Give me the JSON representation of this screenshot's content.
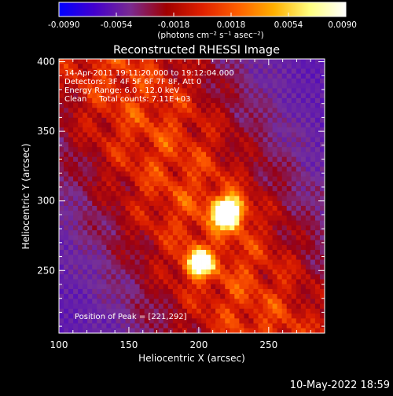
{
  "chart_data": {
    "type": "heatmap",
    "title": "Reconstructed RHESSI Image",
    "xlabel": "Heliocentric X (arcsec)",
    "ylabel": "Heliocentric Y (arcsec)",
    "xlim": [
      100,
      290
    ],
    "ylim": [
      205,
      402
    ],
    "x_ticks": [
      "100",
      "150",
      "200",
      "250"
    ],
    "y_ticks": [
      "250",
      "300",
      "350",
      "400"
    ],
    "x_tick_values": [
      100,
      150,
      200,
      250
    ],
    "y_tick_values": [
      250,
      300,
      350,
      400
    ],
    "colorbar": {
      "ticks": [
        "-0.0090",
        "-0.0054",
        "-0.0018",
        "0.0018",
        "0.0054",
        "0.0090"
      ],
      "tick_values": [
        -0.009,
        -0.0054,
        -0.0018,
        0.0018,
        0.0054,
        0.009
      ],
      "range": [
        -0.009,
        0.009
      ],
      "label": "(photons cm⁻² s⁻¹ asec⁻²)",
      "colors": [
        "#0000ff",
        "#4400cc",
        "#7a2a90",
        "#a00000",
        "#e02000",
        "#ff6000",
        "#ffb000",
        "#ffff80",
        "#ffffff"
      ]
    },
    "annotations": [
      "14-Apr-2011 19:11:20.000 to 19:12:04.000",
      "Detectors: 3F 4F 5F 6F 7F 8F, Att 0",
      "Energy Range: 6.0 - 12.0 keV",
      "Clean     Total counts: 7.11E+03"
    ],
    "peak_label": "Position of Peak = [221,292]",
    "peak": [
      221,
      292
    ]
  },
  "footer": {
    "date": "10-May-2022 18:59"
  },
  "colors": {
    "background": "#000000",
    "foreground": "#ffffff"
  }
}
